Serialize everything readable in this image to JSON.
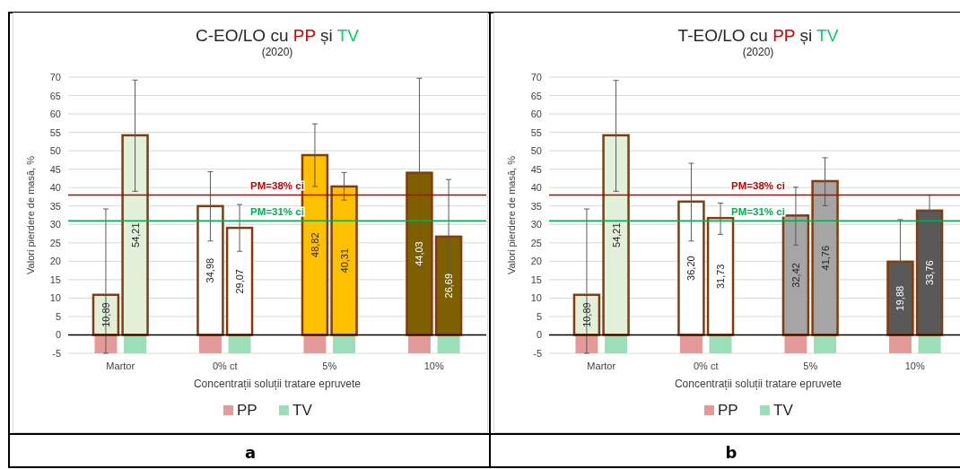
{
  "chart_data": [
    {
      "type": "bar",
      "title": "C-EO/LO cu PP și TV",
      "subtitle": "(2020)",
      "xlabel": "Concentrații soluții tratare epruvete",
      "ylabel": "Valori pierdere de masă, %",
      "categories": [
        "Martor",
        "0% ct",
        "5%",
        "10%"
      ],
      "ylim": [
        -5,
        70
      ],
      "yticks": [
        -5,
        0,
        5,
        10,
        15,
        20,
        25,
        30,
        35,
        40,
        45,
        50,
        55,
        60,
        65,
        70
      ],
      "grid": "y",
      "legend": "bottom",
      "annotations": [
        "a"
      ],
      "series": [
        {
          "name": "PP",
          "color": "#e59a9a",
          "values": [
            -5,
            -5,
            -5,
            -5
          ]
        },
        {
          "name": "TV",
          "color": "#9adfb8",
          "values": [
            -5,
            -5,
            -5,
            -5
          ]
        },
        {
          "colors": [
            "#e2efd9",
            "#ffffff",
            "#ffc000",
            "#7f6000"
          ],
          "values": [
            10.89,
            34.98,
            48.82,
            44.03
          ],
          "value_labels": [
            "10,89",
            "34,98",
            "48,82",
            "44,03"
          ],
          "errors": [
            [
              -5,
              34.2
            ],
            [
              25.5,
              44.3
            ],
            [
              40.3,
              57.3
            ],
            [
              18.4,
              69.7
            ]
          ]
        },
        {
          "colors": [
            "#e2efd9",
            "#ffffff",
            "#ffc000",
            "#7f6000"
          ],
          "values": [
            54.21,
            29.07,
            40.31,
            26.69
          ],
          "value_labels": [
            "54,21",
            "29,07",
            "40,31",
            "26,69"
          ],
          "errors": [
            [
              39,
              69.2
            ],
            [
              22.7,
              35.4
            ],
            [
              36.6,
              44.1
            ],
            [
              11.2,
              42.2
            ]
          ]
        }
      ],
      "ref_lines": [
        {
          "axis": "y",
          "value": 38,
          "label": "PM=38% ci",
          "color": "#c00000"
        },
        {
          "axis": "y",
          "value": 31,
          "label": "PM=31% ci",
          "color": "#00b050"
        }
      ]
    },
    {
      "type": "bar",
      "title": "T-EO/LO cu PP și TV",
      "subtitle": "(2020)",
      "xlabel": "Concentrații soluții tratare epruvete",
      "ylabel": "Valori pierdere de masă, %",
      "categories": [
        "Martor",
        "0% ct",
        "5%",
        "10%"
      ],
      "ylim": [
        -5,
        70
      ],
      "yticks": [
        -5,
        0,
        5,
        10,
        15,
        20,
        25,
        30,
        35,
        40,
        45,
        50,
        55,
        60,
        65,
        70
      ],
      "grid": "y",
      "legend": "bottom",
      "annotations": [
        "b"
      ],
      "series": [
        {
          "name": "PP",
          "color": "#e59a9a",
          "values": [
            -5,
            -5,
            -5,
            -5
          ]
        },
        {
          "name": "TV",
          "color": "#9adfb8",
          "values": [
            -5,
            -5,
            -5,
            -5
          ]
        },
        {
          "colors": [
            "#e2efd9",
            "#ffffff",
            "#a5a5a5",
            "#595959"
          ],
          "values": [
            10.89,
            36.2,
            32.42,
            19.88
          ],
          "value_labels": [
            "10,89",
            "36,20",
            "32,42",
            "19,88"
          ],
          "errors": [
            [
              -5,
              34.2
            ],
            [
              25.5,
              46.6
            ],
            [
              24.4,
              40.1
            ],
            [
              19.88,
              31.3
            ]
          ]
        },
        {
          "colors": [
            "#e2efd9",
            "#ffffff",
            "#a5a5a5",
            "#595959"
          ],
          "values": [
            54.21,
            31.73,
            41.76,
            33.76
          ],
          "value_labels": [
            "54,21",
            "31,73",
            "41,76",
            "33,76"
          ],
          "errors": [
            [
              39,
              69.1
            ],
            [
              27.3,
              35.8
            ],
            [
              35.1,
              48.1
            ],
            [
              33.76,
              38
            ]
          ]
        }
      ],
      "ref_lines": [
        {
          "axis": "y",
          "value": 38,
          "label": "PM=38% ci",
          "color": "#c00000"
        },
        {
          "axis": "y",
          "value": 31,
          "label": "PM=31% ci",
          "color": "#00b050"
        }
      ]
    }
  ]
}
